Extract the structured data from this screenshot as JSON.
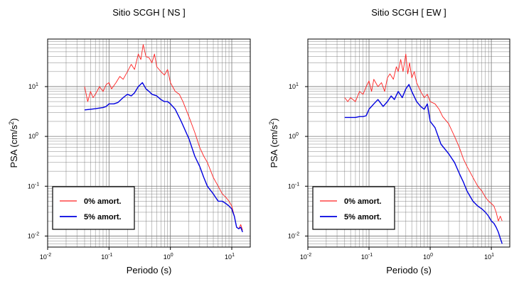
{
  "chart_data": [
    {
      "type": "line",
      "title": "Sitio SCGH [ NS ]",
      "xlabel": "Periodo (s)",
      "ylabel": "PSA (cm/s2)",
      "xscale": "log",
      "yscale": "log",
      "xlim": [
        0.01,
        20
      ],
      "ylim": [
        0.006,
        90
      ],
      "grid": true,
      "legend_position": "bottom-left",
      "x_ticks": [
        {
          "base": "10",
          "exp": "-2"
        },
        {
          "base": "10",
          "exp": "-1"
        },
        {
          "base": "10",
          "exp": "0"
        },
        {
          "base": "10",
          "exp": "1"
        }
      ],
      "y_ticks": [
        {
          "base": "10",
          "exp": "-2"
        },
        {
          "base": "10",
          "exp": "-1"
        },
        {
          "base": "10",
          "exp": "0"
        },
        {
          "base": "10",
          "exp": "1"
        }
      ],
      "series": [
        {
          "name": "0% amort.",
          "color": "#ff2020",
          "x": [
            0.04,
            0.045,
            0.05,
            0.055,
            0.06,
            0.07,
            0.08,
            0.09,
            0.1,
            0.11,
            0.13,
            0.15,
            0.17,
            0.2,
            0.23,
            0.26,
            0.3,
            0.33,
            0.36,
            0.4,
            0.45,
            0.5,
            0.55,
            0.6,
            0.7,
            0.8,
            0.9,
            1.0,
            1.2,
            1.4,
            1.6,
            2.0,
            2.5,
            3.0,
            3.5,
            4.0,
            5.0,
            6.0,
            7.0,
            8.0,
            9.0,
            10.0,
            11.0,
            12.0,
            13.0,
            14.0,
            15.0
          ],
          "y": [
            10,
            5,
            8,
            6,
            7,
            10,
            8,
            11,
            12,
            9,
            12,
            16,
            14,
            20,
            28,
            22,
            45,
            35,
            70,
            40,
            38,
            30,
            45,
            25,
            20,
            17,
            22,
            12,
            8,
            7,
            5,
            2.5,
            1.2,
            0.6,
            0.4,
            0.3,
            0.15,
            0.1,
            0.07,
            0.06,
            0.05,
            0.04,
            0.025,
            0.015,
            0.014,
            0.017,
            0.013
          ]
        },
        {
          "name": "5% amort.",
          "color": "#0000e0",
          "x": [
            0.04,
            0.05,
            0.06,
            0.07,
            0.08,
            0.09,
            0.1,
            0.12,
            0.14,
            0.17,
            0.2,
            0.23,
            0.26,
            0.3,
            0.35,
            0.4,
            0.45,
            0.5,
            0.6,
            0.7,
            0.8,
            0.9,
            1.0,
            1.2,
            1.5,
            2.0,
            2.5,
            3.0,
            3.5,
            4.0,
            5.0,
            6.0,
            7.0,
            8.0,
            9.0,
            10.0,
            11.0,
            12.0,
            13.0,
            14.0,
            15.0
          ],
          "y": [
            3.4,
            3.5,
            3.6,
            3.7,
            3.8,
            4.0,
            4.5,
            4.5,
            4.8,
            6.0,
            7.0,
            6.5,
            7.5,
            10.0,
            12.0,
            9.0,
            8.0,
            7.0,
            6.5,
            5.5,
            5.0,
            5.0,
            4.5,
            3.5,
            2.0,
            0.9,
            0.4,
            0.25,
            0.15,
            0.1,
            0.07,
            0.05,
            0.05,
            0.045,
            0.04,
            0.035,
            0.025,
            0.015,
            0.014,
            0.015,
            0.012
          ]
        }
      ]
    },
    {
      "type": "line",
      "title": "Sitio SCGH [ EW ]",
      "xlabel": "Periodo (s)",
      "ylabel": "PSA (cm/s2)",
      "xscale": "log",
      "yscale": "log",
      "xlim": [
        0.01,
        20
      ],
      "ylim": [
        0.006,
        90
      ],
      "grid": true,
      "legend_position": "bottom-left",
      "x_ticks": [
        {
          "base": "10",
          "exp": "-2"
        },
        {
          "base": "10",
          "exp": "-1"
        },
        {
          "base": "10",
          "exp": "0"
        },
        {
          "base": "10",
          "exp": "1"
        }
      ],
      "y_ticks": [
        {
          "base": "10",
          "exp": "-2"
        },
        {
          "base": "10",
          "exp": "-1"
        },
        {
          "base": "10",
          "exp": "0"
        },
        {
          "base": "10",
          "exp": "1"
        }
      ],
      "series": [
        {
          "name": "0% amort.",
          "color": "#ff2020",
          "x": [
            0.04,
            0.045,
            0.05,
            0.06,
            0.07,
            0.08,
            0.09,
            0.1,
            0.11,
            0.12,
            0.14,
            0.16,
            0.18,
            0.2,
            0.22,
            0.25,
            0.28,
            0.3,
            0.33,
            0.36,
            0.4,
            0.43,
            0.46,
            0.5,
            0.55,
            0.6,
            0.7,
            0.8,
            0.9,
            1.0,
            1.2,
            1.4,
            1.6,
            2.0,
            2.5,
            3.0,
            3.5,
            4.0,
            5.0,
            6.0,
            7.0,
            8.0,
            9.0,
            10.0,
            11.0,
            12.0,
            13.0,
            14.0,
            15.0
          ],
          "y": [
            6,
            5,
            6,
            5,
            8,
            7,
            10,
            13,
            8,
            14,
            10,
            12,
            8,
            15,
            18,
            14,
            25,
            20,
            35,
            20,
            45,
            18,
            30,
            15,
            20,
            12,
            8,
            6,
            7,
            5,
            4.5,
            3.5,
            2.5,
            1.8,
            1.0,
            0.6,
            0.35,
            0.25,
            0.15,
            0.1,
            0.08,
            0.06,
            0.05,
            0.045,
            0.04,
            0.03,
            0.02,
            0.025,
            0.02
          ]
        },
        {
          "name": "5% amort.",
          "color": "#0000e0",
          "x": [
            0.04,
            0.05,
            0.06,
            0.07,
            0.08,
            0.09,
            0.1,
            0.12,
            0.14,
            0.17,
            0.2,
            0.23,
            0.26,
            0.3,
            0.35,
            0.4,
            0.45,
            0.5,
            0.6,
            0.7,
            0.8,
            0.9,
            1.0,
            1.2,
            1.5,
            2.0,
            2.5,
            3.0,
            3.5,
            4.0,
            5.0,
            6.0,
            7.0,
            8.0,
            9.0,
            10.0,
            11.0,
            12.0,
            13.0,
            14.0,
            15.0
          ],
          "y": [
            2.4,
            2.4,
            2.4,
            2.5,
            2.5,
            2.6,
            3.5,
            4.5,
            5.5,
            4.0,
            5.0,
            6.5,
            5.5,
            8.0,
            6.0,
            9.0,
            11.0,
            8.0,
            5.0,
            4.0,
            3.5,
            4.5,
            2.0,
            1.5,
            0.7,
            0.45,
            0.3,
            0.18,
            0.12,
            0.08,
            0.05,
            0.04,
            0.035,
            0.03,
            0.025,
            0.02,
            0.018,
            0.015,
            0.012,
            0.009,
            0.007
          ]
        }
      ]
    }
  ]
}
